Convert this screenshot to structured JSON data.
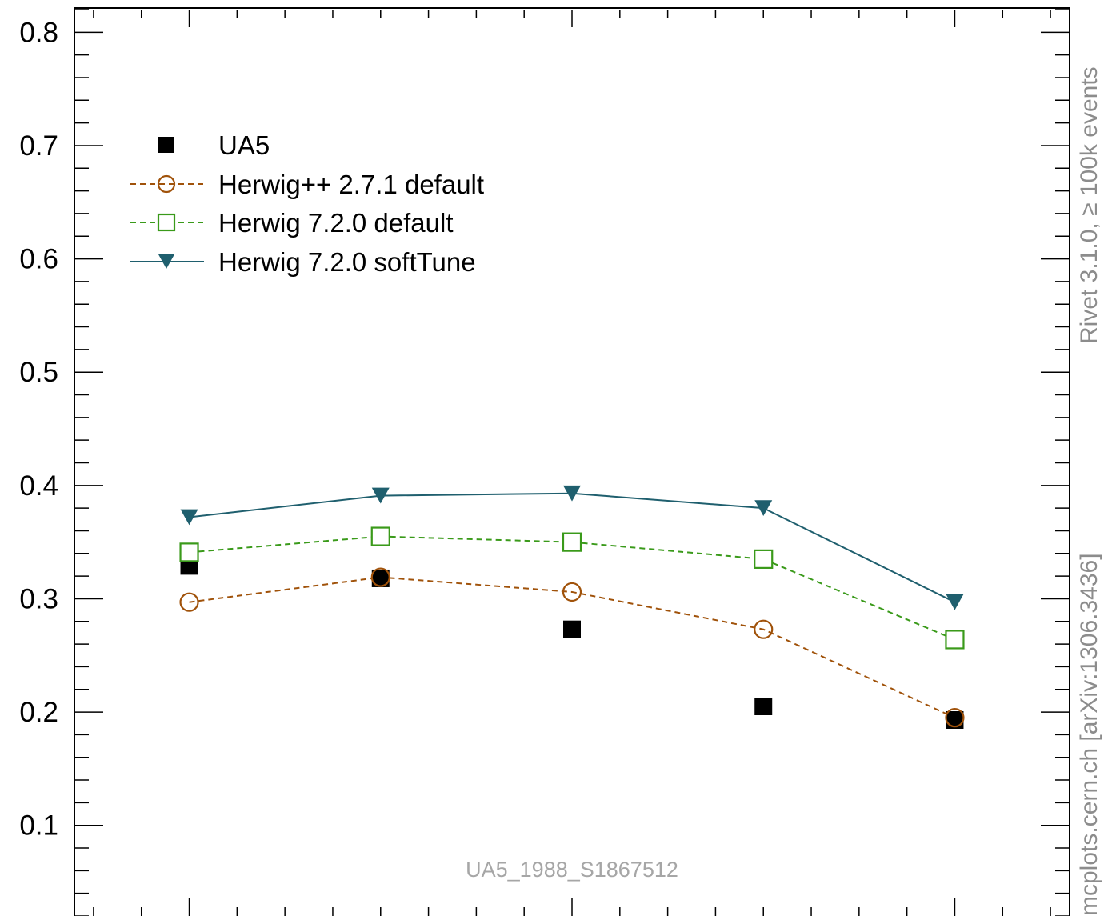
{
  "chart_data": {
    "type": "line",
    "title": "",
    "xlabel": "",
    "ylabel": "",
    "ylim": [
      0.02,
      0.82
    ],
    "yticks": [
      "0.1",
      "0.2",
      "0.3",
      "0.4",
      "0.5",
      "0.6",
      "0.7",
      "0.8"
    ],
    "ytick_values": [
      0.1,
      0.2,
      0.3,
      0.4,
      0.5,
      0.6,
      0.7,
      0.8
    ],
    "x": [
      1,
      2,
      3,
      4,
      5
    ],
    "xlim": [
      0.4,
      5.6
    ],
    "legend_position": "top-left",
    "watermark": "UA5_1988_S1867512",
    "side_label_top": "Rivet 3.1.0, ≥ 100k events",
    "side_label_bottom": "mcplots.cern.ch [arXiv:1306.3436]",
    "series": [
      {
        "name": "UA5",
        "marker": "filled-square",
        "line": "none",
        "color": "#000000",
        "values": [
          0.329,
          0.318,
          0.273,
          0.205,
          0.193
        ]
      },
      {
        "name": "Herwig++ 2.7.1 default",
        "marker": "open-circle",
        "line": "dashed",
        "color": "#a0520a",
        "values": [
          0.297,
          0.319,
          0.306,
          0.273,
          0.195
        ]
      },
      {
        "name": "Herwig 7.2.0 default",
        "marker": "open-square",
        "line": "dashed",
        "color": "#3a9a1a",
        "values": [
          0.341,
          0.355,
          0.35,
          0.335,
          0.264
        ]
      },
      {
        "name": "Herwig 7.2.0 softTune",
        "marker": "filled-triangle-down",
        "line": "solid",
        "color": "#1f5f6e",
        "values": [
          0.372,
          0.391,
          0.393,
          0.38,
          0.297
        ]
      }
    ]
  }
}
